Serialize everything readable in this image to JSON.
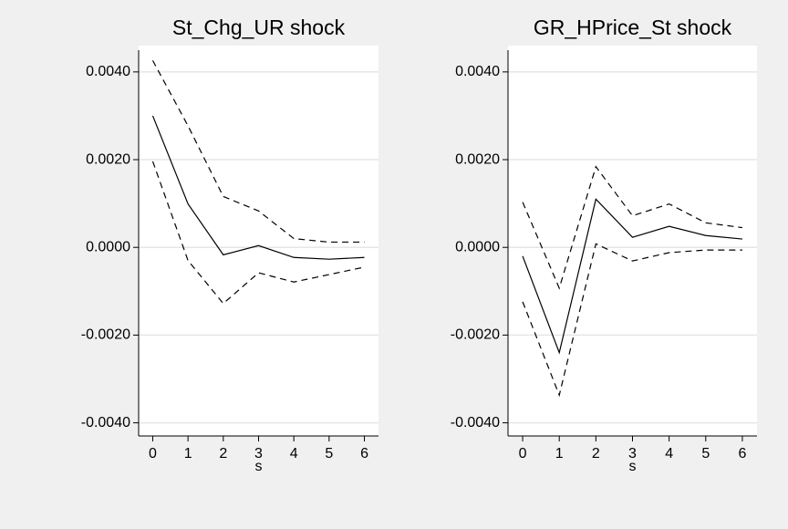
{
  "chart_data": [
    {
      "type": "line",
      "title": "St_Chg_UR shock",
      "xlabel": "s",
      "x": [
        0,
        1,
        2,
        3,
        4,
        5,
        6
      ],
      "series": [
        {
          "color": "#000000",
          "dashed": false,
          "values": [
            0.003,
            0.00099,
            -0.00017,
            4e-05,
            -0.00023,
            -0.00027,
            -0.00023
          ]
        },
        {
          "color": "#000000",
          "dashed": true,
          "values": [
            0.00426,
            0.00277,
            0.00116,
            0.00083,
            0.0002,
            0.00012,
            0.00012
          ]
        },
        {
          "color": "#000000",
          "dashed": true,
          "values": [
            0.00196,
            -0.0003,
            -0.00128,
            -0.00058,
            -0.00079,
            -0.00062,
            -0.00045
          ]
        }
      ],
      "xlim": [
        -0.4,
        6.4
      ],
      "xticks": [
        0,
        1,
        2,
        3,
        4,
        5,
        6
      ],
      "ylim": [
        -0.0043,
        0.0046
      ],
      "yticks": [
        {
          "value": -0.004,
          "label": "-0.0040"
        },
        {
          "value": -0.002,
          "label": "-0.0020"
        },
        {
          "value": 0,
          "label": "0.0000"
        },
        {
          "value": 0.002,
          "label": "0.0020"
        },
        {
          "value": 0.004,
          "label": "0.0040"
        }
      ],
      "grid": true
    },
    {
      "type": "line",
      "title": "GR_HPrice_St shock",
      "xlabel": "s",
      "x": [
        0,
        1,
        2,
        3,
        4,
        5,
        6
      ],
      "series": [
        {
          "color": "#000000",
          "dashed": false,
          "values": [
            -0.0002,
            -0.0024,
            0.0011,
            0.00023,
            0.00048,
            0.00027,
            0.00019
          ]
        },
        {
          "color": "#000000",
          "dashed": true,
          "values": [
            0.00103,
            -0.00093,
            0.00184,
            0.00072,
            0.00099,
            0.00056,
            0.00045
          ]
        },
        {
          "color": "#000000",
          "dashed": true,
          "values": [
            -0.00124,
            -0.00337,
            8e-05,
            -0.00031,
            -0.00012,
            -6e-05,
            -6e-05
          ]
        }
      ],
      "xlim": [
        -0.4,
        6.4
      ],
      "xticks": [
        0,
        1,
        2,
        3,
        4,
        5,
        6
      ],
      "ylim": [
        -0.0043,
        0.0046
      ],
      "yticks": [
        {
          "value": -0.004,
          "label": "-0.0040"
        },
        {
          "value": -0.002,
          "label": "-0.0020"
        },
        {
          "value": 0,
          "label": "0.0000"
        },
        {
          "value": 0.002,
          "label": "0.0020"
        },
        {
          "value": 0.004,
          "label": "0.0040"
        }
      ],
      "grid": true
    }
  ]
}
